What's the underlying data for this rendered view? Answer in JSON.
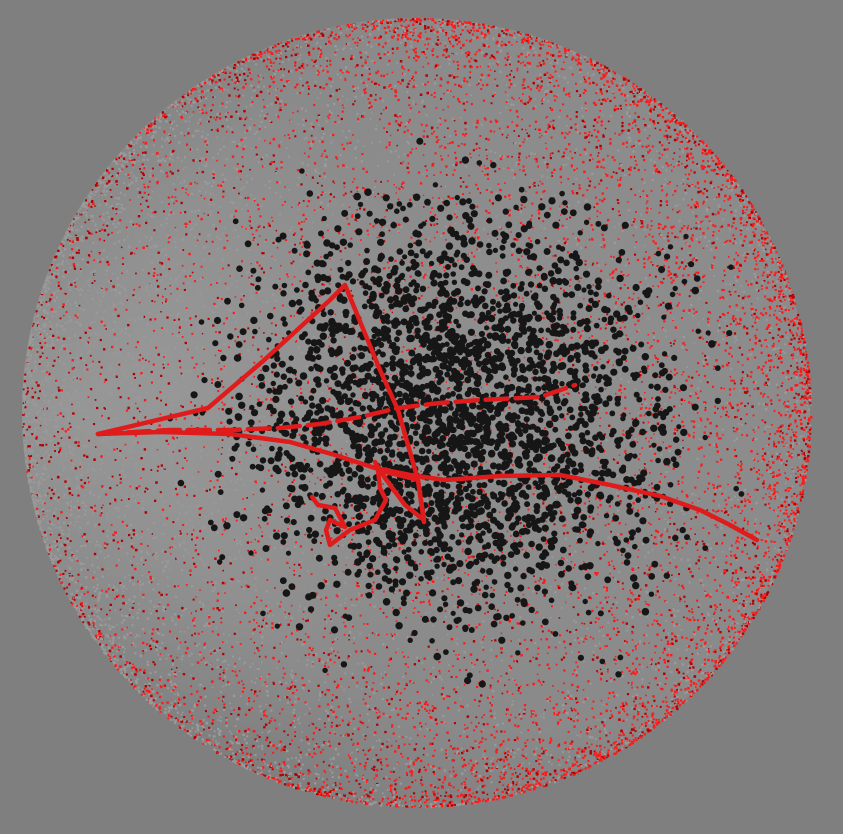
{
  "scene": {
    "background_color": "#7f7f7f",
    "shell_surface_color": "#8a8a8a",
    "shell_particle_color": "#ff1a1a",
    "shell_particle_color_dark": "#b30000",
    "shell_particle_gray": "#9a9a9a",
    "interior_particle_color": "#161616",
    "trajectory_color": "#e01b1b",
    "trajectory_highlight": "#ff4a4a",
    "shell_particle_count": 14000,
    "interior_particle_count": 2600
  }
}
